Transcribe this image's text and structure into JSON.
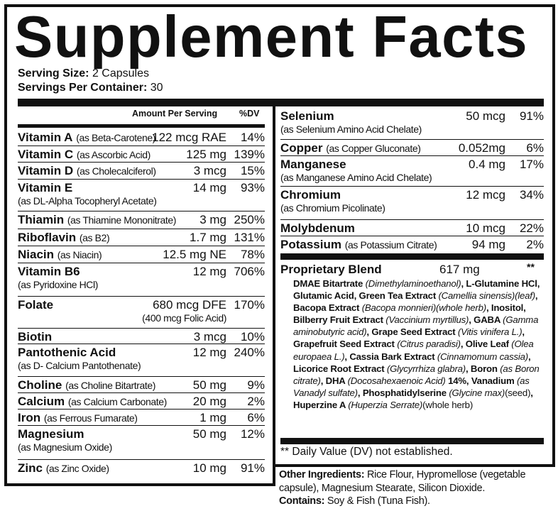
{
  "title": "Supplement Facts",
  "serving_size": {
    "label": "Serving Size:",
    "value": "2 Capsules"
  },
  "servings_per_container": {
    "label": "Servings Per Container:",
    "value": "30"
  },
  "header": {
    "amount": "Amount Per Serving",
    "dv": "%DV"
  },
  "left_rows": [
    {
      "name": "Vitamin A",
      "source": "(as Beta-Carotene)",
      "amount": "122 mcg RAE",
      "dv": "14%"
    },
    {
      "name": "Vitamin C",
      "source": "(as Ascorbic Acid)",
      "amount": "125 mg",
      "dv": "139%"
    },
    {
      "name": "Vitamin D",
      "source": "(as Cholecalciferol)",
      "amount": "3 mcg",
      "dv": "15%"
    },
    {
      "name": "Vitamin E",
      "source2": "(as DL-Alpha Tocopheryl Acetate)",
      "amount": "14 mg",
      "dv": "93%"
    },
    {
      "name": "Thiamin",
      "source": "(as Thiamine Mononitrate)",
      "amount": "3 mg",
      "dv": "250%"
    },
    {
      "name": "Riboflavin",
      "source": "(as B2)",
      "amount": "1.7 mg",
      "dv": "131%"
    },
    {
      "name": "Niacin",
      "source": "(as Niacin)",
      "amount": "12.5 mg NE",
      "dv": "78%"
    },
    {
      "name": "Vitamin B6",
      "source2": "(as Pyridoxine HCl)",
      "amount": "12 mg",
      "dv": "706%"
    },
    {
      "name": "Folate",
      "amount": "680 mcg DFE",
      "amount_sub": "(400 mcg Folic Acid)",
      "dv": "170%"
    },
    {
      "name": "Biotin",
      "amount": "3 mcg",
      "dv": "10%"
    },
    {
      "name": "Pantothenic Acid",
      "source2": "(as D- Calcium Pantothenate)",
      "amount": "12 mg",
      "dv": "240%"
    },
    {
      "name": "Choline",
      "source": "(as Choline Bitartrate)",
      "amount": "50 mg",
      "dv": "9%"
    },
    {
      "name": "Calcium",
      "source": "(as Calcium Carbonate)",
      "amount": "20 mg",
      "dv": "2%"
    },
    {
      "name": "Iron",
      "source": "(as Ferrous Fumarate)",
      "amount": "1 mg",
      "dv": "6%"
    },
    {
      "name": "Magnesium",
      "source2": "(as Magnesium Oxide)",
      "amount": "50 mg",
      "dv": "12%"
    },
    {
      "name": "Zinc",
      "source": "(as Zinc Oxide)",
      "amount": "10 mg",
      "dv": "91%"
    }
  ],
  "right_rows": [
    {
      "name": "Selenium",
      "source2": "(as Selenium Amino Acid Chelate)",
      "amount": "50 mcg",
      "dv": "91%"
    },
    {
      "name": "Copper",
      "source": "(as Copper Gluconate)",
      "amount": "0.052mg",
      "dv": "6%"
    },
    {
      "name": "Manganese",
      "source2": "(as Manganese Amino Acid Chelate)",
      "amount": "0.4 mg",
      "dv": "17%"
    },
    {
      "name": "Chromium",
      "source2": "(as Chromium Picolinate)",
      "amount": "12 mcg",
      "dv": "34%"
    },
    {
      "name": "Molybdenum",
      "amount": "10 mcg",
      "dv": "22%"
    },
    {
      "name": "Potassium",
      "source": "(as Potassium Citrate)",
      "amount": "94 mg",
      "dv": "2%"
    }
  ],
  "blend": {
    "name": "Proprietary Blend",
    "amount": "617 mg",
    "dv": "**",
    "ingredients": [
      {
        "b": "DMAE Bitartrate "
      },
      {
        "i": "(Dimethylaminoethanol)"
      },
      {
        "b": ", L-Glutamine HCl, Glutamic Acid, Green Tea Extract "
      },
      {
        "i": "(Camellia sinensis)(leaf)"
      },
      {
        "b": ", Bacopa Extract "
      },
      {
        "i": "(Bacopa monnieri)(whole herb)"
      },
      {
        "b": ", Inositol, Bilberry Fruit Extract "
      },
      {
        "i": "(Vaccinium myrtillus)"
      },
      {
        "b": ", GABA "
      },
      {
        "i": "(Gamma aminobutyric acid)"
      },
      {
        "b": ", Grape Seed Extract "
      },
      {
        "i": "(Vitis vinifera L.)"
      },
      {
        "b": ", Grapefruit Seed Extract "
      },
      {
        "i": "(Citrus paradisi)"
      },
      {
        "b": ", Olive Leaf "
      },
      {
        "i": "(Olea europaea L.)"
      },
      {
        "b": ", Cassia Bark Extract "
      },
      {
        "i": "(Cinnamomum cassia)"
      },
      {
        "b": ", Licorice Root Extract "
      },
      {
        "i": "(Glycyrrhiza glabra)"
      },
      {
        "b": ", Boron "
      },
      {
        "i": "(as Boron citrate)"
      },
      {
        "b": ", DHA "
      },
      {
        "i": "(Docosahexaenoic Acid) "
      },
      {
        "b": "14%, Vanadium "
      },
      {
        "i": "(as Vanadyl sulfate)"
      },
      {
        "b": ", Phosphatidylserine "
      },
      {
        "i": "(Glycine max)"
      },
      {
        "t": "(seed)"
      },
      {
        "b": ", Huperzine A "
      },
      {
        "i": "(Huperzia Serrate)"
      },
      {
        "t": "(whole herb)"
      }
    ]
  },
  "footnote": "** Daily Value (DV) not established.",
  "other_ingredients": {
    "label": "Other Ingredients:",
    "value": " Rice Flour, Hypromellose (vegetable capsule), Magnesium Stearate, Silicon Dioxide."
  },
  "contains": {
    "label": "Contains:",
    "value": " Soy & Fish (Tuna Fish)."
  }
}
